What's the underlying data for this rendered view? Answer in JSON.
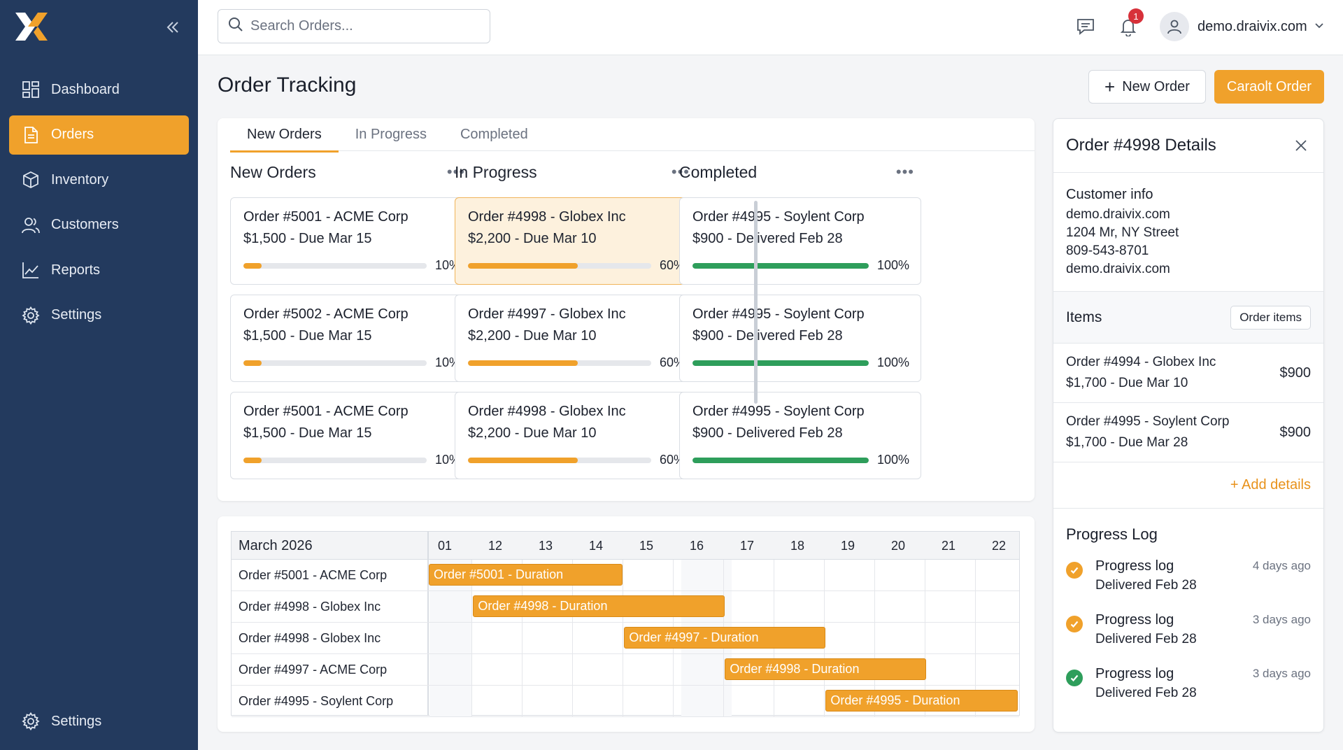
{
  "sidebar": {
    "items": [
      {
        "label": "Dashboard",
        "icon": "dashboard-icon"
      },
      {
        "label": "Orders",
        "icon": "orders-icon",
        "active": true
      },
      {
        "label": "Inventory",
        "icon": "box-icon"
      },
      {
        "label": "Customers",
        "icon": "users-icon"
      },
      {
        "label": "Reports",
        "icon": "chart-icon"
      },
      {
        "label": "Settings",
        "icon": "gear-icon"
      }
    ],
    "bottom_label": "Settings"
  },
  "topbar": {
    "search_placeholder": "Search Orders...",
    "notification_count": "1",
    "user": "demo.draivix.com"
  },
  "page": {
    "title": "Order Tracking",
    "new_order_label": "New Order",
    "cancel_order_label": "Caraolt Order"
  },
  "tabs": [
    "New Orders",
    "In Progress",
    "Completed"
  ],
  "columns": [
    {
      "title": "New Orders",
      "cards": [
        {
          "title": "Order #5001 - ACME Corp",
          "sub": "$1,500 - Due Mar 15",
          "progress": 10,
          "pct": "10%"
        },
        {
          "title": "Order #5002 - ACME Corp",
          "sub": "$1,500 - Due Mar 15",
          "progress": 10,
          "pct": "10%"
        },
        {
          "title": "Order #5001 - ACME Corp",
          "sub": "$1,500 - Due Mar 15",
          "progress": 10,
          "pct": "10%"
        }
      ]
    },
    {
      "title": "In Progress",
      "cards": [
        {
          "title": "Order #4998 - Globex Inc",
          "sub": "$2,200 - Due Mar 10",
          "progress": 60,
          "pct": "60%",
          "highlight": true
        },
        {
          "title": "Order #4997 - Globex Inc",
          "sub": "$2,200 - Due Mar 10",
          "progress": 60,
          "pct": "60%"
        },
        {
          "title": "Order #4998 - Globex Inc",
          "sub": "$2,200 - Due Mar 10",
          "progress": 60,
          "pct": "60%"
        }
      ]
    },
    {
      "title": "Completed",
      "cards": [
        {
          "title": "Order #4995 - Soylent Corp",
          "sub": "$900 - Delivered Feb 28",
          "progress": 100,
          "pct": "100%"
        },
        {
          "title": "Order #4995 - Soylent Corp",
          "sub": "$900 - Delivered Feb 28",
          "progress": 100,
          "pct": "100%"
        },
        {
          "title": "Order #4995 - Soylent Corp",
          "sub": "$900 - Delivered Feb 28",
          "progress": 100,
          "pct": "100%"
        }
      ]
    }
  ],
  "colors": {
    "accent": "#f0a12b",
    "sidebar": "#233a5e",
    "success": "#2e9e5b",
    "progress_orange": "#f0a12b"
  },
  "gantt": {
    "month": "March 2026",
    "days": [
      "01",
      "12",
      "13",
      "14",
      "15",
      "16",
      "17",
      "18",
      "19",
      "20",
      "21",
      "22"
    ],
    "rows": [
      {
        "label": "Order #5001 - ACME Corp",
        "bar": "Order #5001 - Duration",
        "start": 0,
        "span": 3.85
      },
      {
        "label": "Order #4998 - Globex Inc",
        "bar": "Order #4998 - Duration",
        "start": 0.88,
        "span": 5.0
      },
      {
        "label": "Order #4998 - Globex Inc",
        "bar": "Order #4997 - Duration",
        "start": 3.88,
        "span": 4.0
      },
      {
        "label": "Order #4997 - ACME Corp",
        "bar": "Order #4998 - Duration",
        "start": 5.88,
        "span": 4.0
      },
      {
        "label": "Order #4995 - Soylent Corp",
        "bar": "Order #4995 - Duration",
        "start": 7.88,
        "span": 3.82
      }
    ]
  },
  "details": {
    "title": "Order #4998 Details",
    "customer_info_title": "Customer info",
    "customer_lines": [
      "demo.draivix.com",
      "1204 Mr, NY Street",
      "809-543-8701",
      "demo.draivix.com"
    ],
    "items_title": "Items",
    "order_items_label": "Order items",
    "items": [
      {
        "l1": "Order #4994 - Globex Inc",
        "l2": "$1,700 - Due Mar 10",
        "price": "$900"
      },
      {
        "l1": "Order #4995 - Soylent Corp",
        "l2": "$1,700 - Due Mar 28",
        "price": "$900"
      }
    ],
    "add_details_label": "+ Add details",
    "log_title": "Progress Log",
    "log": [
      {
        "name": "Progress log",
        "desc": "Delivered Feb 28",
        "time": "4 days ago",
        "status": "orange"
      },
      {
        "name": "Progress log",
        "desc": "Delivered Feb 28",
        "time": "3 days ago",
        "status": "orange"
      },
      {
        "name": "Progress log",
        "desc": "Delivered Feb 28",
        "time": "3 days ago",
        "status": "green"
      }
    ]
  }
}
